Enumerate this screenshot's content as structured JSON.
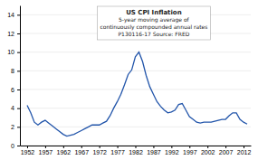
{
  "chart_data": {
    "type": "line",
    "title": "US CPI Inflation",
    "subtitle": [
      "5-year moving average of",
      "continuously compounded annual rates",
      "P130116-17 Source: FRED"
    ],
    "x": [
      1952,
      1953,
      1954,
      1955,
      1956,
      1957,
      1958,
      1959,
      1960,
      1961,
      1962,
      1963,
      1964,
      1965,
      1966,
      1967,
      1968,
      1969,
      1970,
      1971,
      1972,
      1973,
      1974,
      1975,
      1976,
      1977,
      1978,
      1979,
      1980,
      1981,
      1982,
      1983,
      1984,
      1985,
      1986,
      1987,
      1988,
      1989,
      1990,
      1991,
      1992,
      1993,
      1994,
      1995,
      1996,
      1997,
      1998,
      1999,
      2000,
      2001,
      2002,
      2003,
      2004,
      2005,
      2006,
      2007,
      2008,
      2009,
      2010,
      2011,
      2012,
      2013
    ],
    "values": [
      4.3,
      3.5,
      2.5,
      2.2,
      2.5,
      2.7,
      2.4,
      2.1,
      1.8,
      1.5,
      1.2,
      1.0,
      1.1,
      1.2,
      1.4,
      1.6,
      1.8,
      2.0,
      2.2,
      2.2,
      2.2,
      2.4,
      2.6,
      3.2,
      4.0,
      4.7,
      5.5,
      6.5,
      7.6,
      8.1,
      9.5,
      10.0,
      9.0,
      7.5,
      6.3,
      5.5,
      4.7,
      4.2,
      3.8,
      3.5,
      3.6,
      3.8,
      4.4,
      4.5,
      3.8,
      3.1,
      2.8,
      2.5,
      2.4,
      2.5,
      2.5,
      2.5,
      2.6,
      2.7,
      2.8,
      2.8,
      3.2,
      3.5,
      3.5,
      2.8,
      2.5,
      2.3
    ],
    "color": "#2255aa",
    "xlim": [
      1950,
      2014
    ],
    "xticks": [
      1952,
      1957,
      1962,
      1967,
      1972,
      1977,
      1982,
      1987,
      1992,
      1997,
      2002,
      2007,
      2012
    ],
    "ylim": [
      0,
      15
    ],
    "yticks": [
      0,
      2,
      4,
      6,
      8,
      10,
      12,
      14
    ],
    "grid": true
  }
}
